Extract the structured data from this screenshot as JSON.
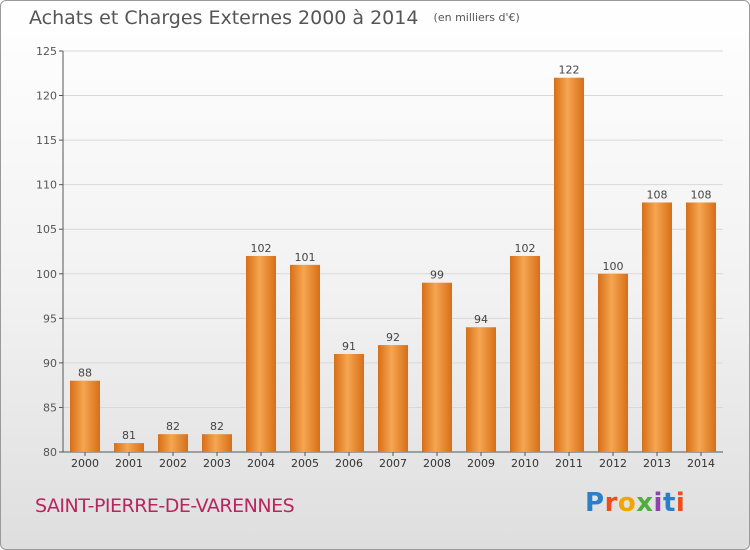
{
  "header": {
    "title": "Achats et Charges Externes 2000 à 2014",
    "unit": "(en milliers d'€)"
  },
  "footer": {
    "town": "SAINT-PIERRE-DE-VARENNES",
    "logo": "Proxiti"
  },
  "colors": {
    "bar_light": "#f6a552",
    "bar_dark": "#d66f17",
    "grid": "#d8d8d8",
    "axis": "#555555",
    "town": "#b8255f"
  },
  "chart_data": {
    "type": "bar",
    "categories": [
      "2000",
      "2001",
      "2002",
      "2003",
      "2004",
      "2005",
      "2006",
      "2007",
      "2008",
      "2009",
      "2010",
      "2011",
      "2012",
      "2013",
      "2014"
    ],
    "values": [
      88,
      81,
      82,
      82,
      102,
      101,
      91,
      92,
      99,
      94,
      102,
      122,
      100,
      108,
      108
    ],
    "ylim": [
      80,
      125
    ],
    "yticks": [
      80,
      85,
      90,
      95,
      100,
      105,
      110,
      115,
      120,
      125
    ],
    "grid": true,
    "legend": "none"
  }
}
